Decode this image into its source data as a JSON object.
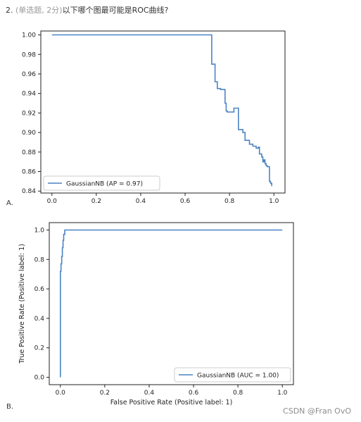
{
  "question": {
    "number": "2.",
    "meta": "(单选题, 2分)",
    "text": "以下哪个图最可能是ROC曲线?"
  },
  "options": [
    {
      "label": "A."
    },
    {
      "label": "B."
    }
  ],
  "watermark": "CSDN @Fran OvO",
  "colors": {
    "line": "#4c84c4",
    "axis": "#222222"
  },
  "chart_data": [
    {
      "type": "line",
      "title": "",
      "xlabel": "",
      "ylabel": "",
      "xlim": [
        -0.05,
        1.05
      ],
      "ylim": [
        0.838,
        1.004
      ],
      "xticks": [
        "0.0",
        "0.2",
        "0.4",
        "0.6",
        "0.8",
        "1.0"
      ],
      "xtick_values": [
        0.0,
        0.2,
        0.4,
        0.6,
        0.8,
        1.0
      ],
      "yticks": [
        "0.84",
        "0.86",
        "0.88",
        "0.90",
        "0.92",
        "0.94",
        "0.96",
        "0.98",
        "1.00"
      ],
      "ytick_values": [
        0.84,
        0.86,
        0.88,
        0.9,
        0.92,
        0.94,
        0.96,
        0.98,
        1.0
      ],
      "legend": "lower-left",
      "grid": false,
      "series": [
        {
          "name": "GaussianNB (AP = 0.97)",
          "x": [
            0.0,
            0.72,
            0.72,
            0.735,
            0.735,
            0.745,
            0.745,
            0.76,
            0.76,
            0.78,
            0.78,
            0.785,
            0.785,
            0.79,
            0.79,
            0.82,
            0.82,
            0.835,
            0.835,
            0.84,
            0.84,
            0.86,
            0.86,
            0.87,
            0.87,
            0.89,
            0.89,
            0.905,
            0.905,
            0.92,
            0.92,
            0.93,
            0.93,
            0.935,
            0.935,
            0.945,
            0.945,
            0.95,
            0.95,
            0.955,
            0.955,
            0.96,
            0.96,
            0.965,
            0.965,
            0.97,
            0.97,
            0.98,
            0.98,
            0.985,
            0.985,
            0.99,
            0.99
          ],
          "y": [
            1.0,
            1.0,
            0.97,
            0.97,
            0.952,
            0.952,
            0.945,
            0.945,
            0.944,
            0.944,
            0.93,
            0.93,
            0.922,
            0.922,
            0.921,
            0.921,
            0.925,
            0.925,
            0.925,
            0.925,
            0.903,
            0.903,
            0.9,
            0.9,
            0.892,
            0.892,
            0.888,
            0.888,
            0.886,
            0.886,
            0.884,
            0.884,
            0.885,
            0.885,
            0.878,
            0.878,
            0.875,
            0.875,
            0.87,
            0.87,
            0.872,
            0.872,
            0.868,
            0.868,
            0.866,
            0.866,
            0.865,
            0.865,
            0.85,
            0.85,
            0.848,
            0.848,
            0.845
          ]
        }
      ]
    },
    {
      "type": "line",
      "title": "",
      "xlabel": "False Positive Rate (Positive label: 1)",
      "ylabel": "True Positive Rate (Positive label: 1)",
      "xlim": [
        -0.05,
        1.05
      ],
      "ylim": [
        -0.05,
        1.05
      ],
      "xticks": [
        "0.0",
        "0.2",
        "0.4",
        "0.6",
        "0.8",
        "1.0"
      ],
      "xtick_values": [
        0.0,
        0.2,
        0.4,
        0.6,
        0.8,
        1.0
      ],
      "yticks": [
        "0.0",
        "0.2",
        "0.4",
        "0.6",
        "0.8",
        "1.0"
      ],
      "ytick_values": [
        0.0,
        0.2,
        0.4,
        0.6,
        0.8,
        1.0
      ],
      "legend": "lower-right",
      "grid": false,
      "series": [
        {
          "name": "GaussianNB (AUC = 1.00)",
          "x": [
            0.0,
            0.0,
            0.003,
            0.003,
            0.006,
            0.006,
            0.009,
            0.009,
            0.012,
            0.012,
            0.015,
            0.015,
            0.02,
            0.02,
            1.0
          ],
          "y": [
            0.0,
            0.72,
            0.72,
            0.77,
            0.77,
            0.82,
            0.82,
            0.88,
            0.88,
            0.93,
            0.93,
            0.97,
            0.97,
            1.0,
            1.0
          ]
        }
      ]
    }
  ]
}
